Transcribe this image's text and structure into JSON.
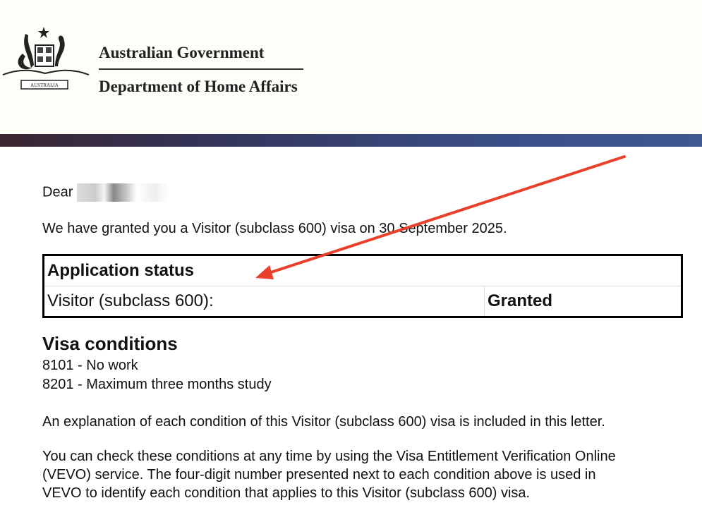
{
  "header": {
    "government": "Australian Government",
    "department": "Department of Home Affairs",
    "crest_motto": "AUSTRALIA"
  },
  "letter": {
    "salutation": "Dear",
    "grant_sentence": "We have granted you a Visitor (subclass 600) visa on 30 September 2025.",
    "status_table": {
      "heading": "Application status",
      "row_label": "Visitor (subclass 600):",
      "row_value": "Granted"
    },
    "conditions_heading": "Visa conditions",
    "conditions": [
      "8101 - No work",
      "8201 - Maximum three months study"
    ],
    "explanation": "An explanation of each condition of this Visitor (subclass 600) visa is included in this letter.",
    "vevo_lines": [
      "You can check these conditions at any time by using the Visa Entitlement Verification Online",
      "(VEVO) service. The four-digit number presented next to each condition above is used in",
      "VEVO to identify each condition that applies to this Visitor (subclass 600) visa."
    ]
  },
  "annotation": {
    "arrow_color": "#e8402a"
  }
}
